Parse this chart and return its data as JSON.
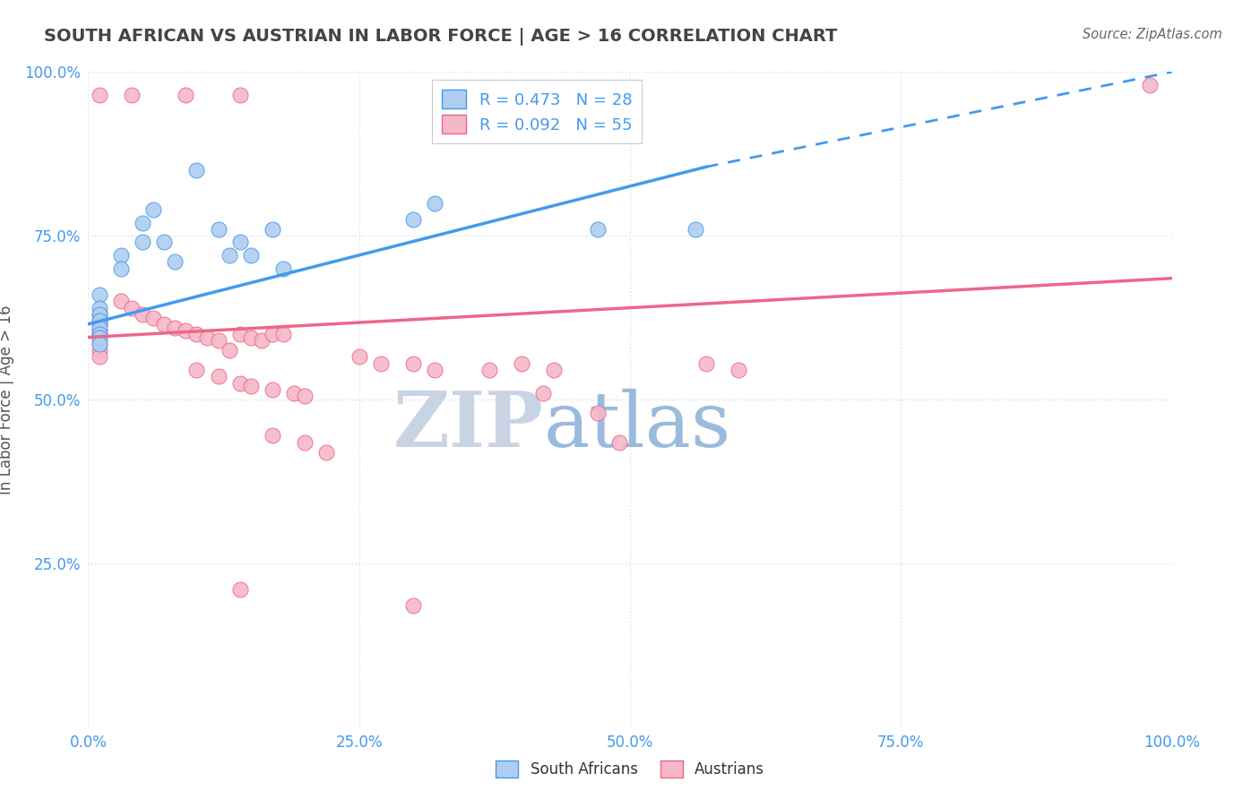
{
  "title": "SOUTH AFRICAN VS AUSTRIAN IN LABOR FORCE | AGE > 16 CORRELATION CHART",
  "source": "Source: ZipAtlas.com",
  "ylabel": "In Labor Force | Age > 16",
  "xlim": [
    0.0,
    1.0
  ],
  "ylim": [
    0.0,
    1.0
  ],
  "xticks": [
    0.0,
    0.25,
    0.5,
    0.75,
    1.0
  ],
  "yticks": [
    0.25,
    0.5,
    0.75,
    1.0
  ],
  "xticklabels": [
    "0.0%",
    "25.0%",
    "50.0%",
    "75.0%",
    "100.0%"
  ],
  "yticklabels": [
    "25.0%",
    "50.0%",
    "75.0%",
    "100.0%"
  ],
  "blue_R": 0.473,
  "blue_N": 28,
  "pink_R": 0.092,
  "pink_N": 55,
  "blue_color": "#AECEF0",
  "pink_color": "#F5B8C8",
  "blue_line_color": "#4499EE",
  "pink_line_color": "#EE6688",
  "bg_color": "#FFFFFF",
  "grid_color": "#DDDDE8",
  "watermark_zip": "ZIP",
  "watermark_atlas": "atlas",
  "watermark_color_zip": "#C8D4E4",
  "watermark_color_atlas": "#99BBDD",
  "tick_label_color": "#4499EE",
  "title_color": "#444444",
  "blue_scatter": [
    [
      0.01,
      0.66
    ],
    [
      0.01,
      0.64
    ],
    [
      0.01,
      0.63
    ],
    [
      0.01,
      0.62
    ],
    [
      0.01,
      0.61
    ],
    [
      0.01,
      0.6
    ],
    [
      0.01,
      0.595
    ],
    [
      0.01,
      0.585
    ],
    [
      0.03,
      0.72
    ],
    [
      0.03,
      0.7
    ],
    [
      0.05,
      0.77
    ],
    [
      0.05,
      0.74
    ],
    [
      0.06,
      0.79
    ],
    [
      0.07,
      0.74
    ],
    [
      0.08,
      0.71
    ],
    [
      0.1,
      0.85
    ],
    [
      0.12,
      0.76
    ],
    [
      0.13,
      0.72
    ],
    [
      0.14,
      0.74
    ],
    [
      0.15,
      0.72
    ],
    [
      0.17,
      0.76
    ],
    [
      0.18,
      0.7
    ],
    [
      0.3,
      0.775
    ],
    [
      0.32,
      0.8
    ],
    [
      0.47,
      0.76
    ],
    [
      0.56,
      0.76
    ]
  ],
  "pink_scatter": [
    [
      0.01,
      0.965
    ],
    [
      0.04,
      0.965
    ],
    [
      0.09,
      0.965
    ],
    [
      0.14,
      0.965
    ],
    [
      0.01,
      0.63
    ],
    [
      0.01,
      0.62
    ],
    [
      0.01,
      0.615
    ],
    [
      0.01,
      0.605
    ],
    [
      0.01,
      0.6
    ],
    [
      0.01,
      0.595
    ],
    [
      0.01,
      0.585
    ],
    [
      0.01,
      0.575
    ],
    [
      0.01,
      0.565
    ],
    [
      0.03,
      0.65
    ],
    [
      0.04,
      0.64
    ],
    [
      0.05,
      0.63
    ],
    [
      0.06,
      0.625
    ],
    [
      0.07,
      0.615
    ],
    [
      0.08,
      0.61
    ],
    [
      0.09,
      0.605
    ],
    [
      0.1,
      0.6
    ],
    [
      0.11,
      0.595
    ],
    [
      0.12,
      0.59
    ],
    [
      0.13,
      0.575
    ],
    [
      0.14,
      0.6
    ],
    [
      0.15,
      0.595
    ],
    [
      0.16,
      0.59
    ],
    [
      0.17,
      0.6
    ],
    [
      0.18,
      0.6
    ],
    [
      0.1,
      0.545
    ],
    [
      0.12,
      0.535
    ],
    [
      0.14,
      0.525
    ],
    [
      0.15,
      0.52
    ],
    [
      0.17,
      0.515
    ],
    [
      0.19,
      0.51
    ],
    [
      0.2,
      0.505
    ],
    [
      0.25,
      0.565
    ],
    [
      0.27,
      0.555
    ],
    [
      0.3,
      0.555
    ],
    [
      0.32,
      0.545
    ],
    [
      0.37,
      0.545
    ],
    [
      0.4,
      0.555
    ],
    [
      0.43,
      0.545
    ],
    [
      0.17,
      0.445
    ],
    [
      0.2,
      0.435
    ],
    [
      0.22,
      0.42
    ],
    [
      0.42,
      0.51
    ],
    [
      0.47,
      0.48
    ],
    [
      0.49,
      0.435
    ],
    [
      0.14,
      0.21
    ],
    [
      0.3,
      0.185
    ],
    [
      0.57,
      0.555
    ],
    [
      0.6,
      0.545
    ],
    [
      0.98,
      0.98
    ]
  ],
  "blue_line_solid": [
    [
      0.0,
      0.615
    ],
    [
      0.57,
      0.855
    ]
  ],
  "blue_line_dash": [
    [
      0.57,
      0.855
    ],
    [
      1.0,
      1.0
    ]
  ],
  "pink_line": [
    [
      0.0,
      0.595
    ],
    [
      1.0,
      0.685
    ]
  ]
}
